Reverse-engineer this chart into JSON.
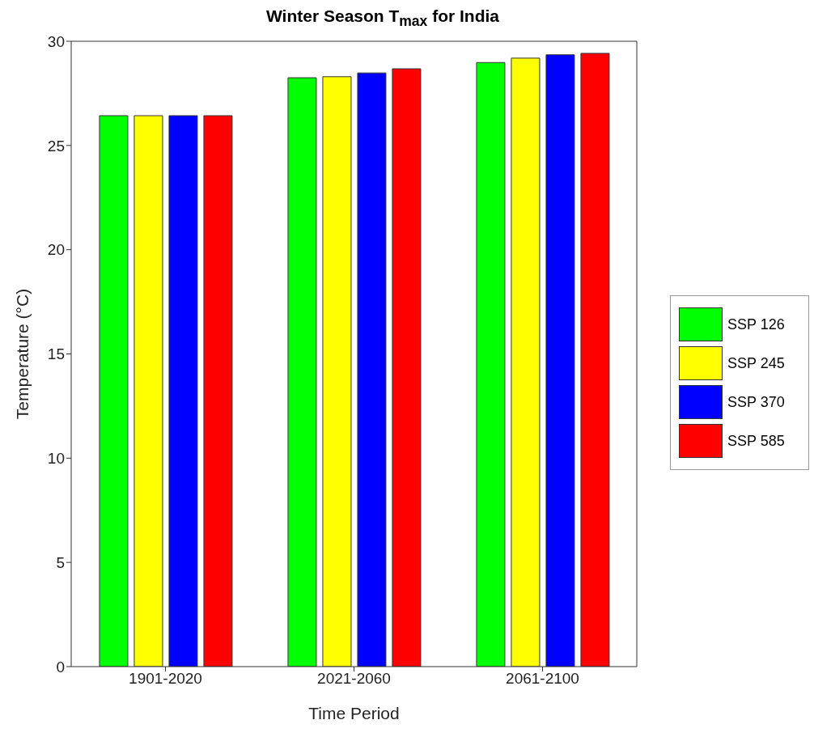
{
  "chart_data": {
    "type": "bar",
    "title": "Winter Season T$_{max}$ for India",
    "xlabel": "Time Period",
    "ylabel": "Temperature (°C)",
    "categories": [
      "1901-2020",
      "2021-2060",
      "2061-2100"
    ],
    "series": [
      {
        "name": "SSP 126",
        "color": "#00ff00",
        "values": [
          26.43,
          28.25,
          28.98
        ]
      },
      {
        "name": "SSP 245",
        "color": "#ffff00",
        "values": [
          26.43,
          28.3,
          29.19
        ]
      },
      {
        "name": "SSP 370",
        "color": "#0000ff",
        "values": [
          26.43,
          28.48,
          29.35
        ]
      },
      {
        "name": "SSP 585",
        "color": "#ff0000",
        "values": [
          26.43,
          28.68,
          29.42
        ]
      }
    ],
    "ylim": [
      0,
      30
    ],
    "yticks": [
      0,
      5,
      10,
      15,
      20,
      25,
      30
    ],
    "grid": false,
    "legend": "right"
  }
}
